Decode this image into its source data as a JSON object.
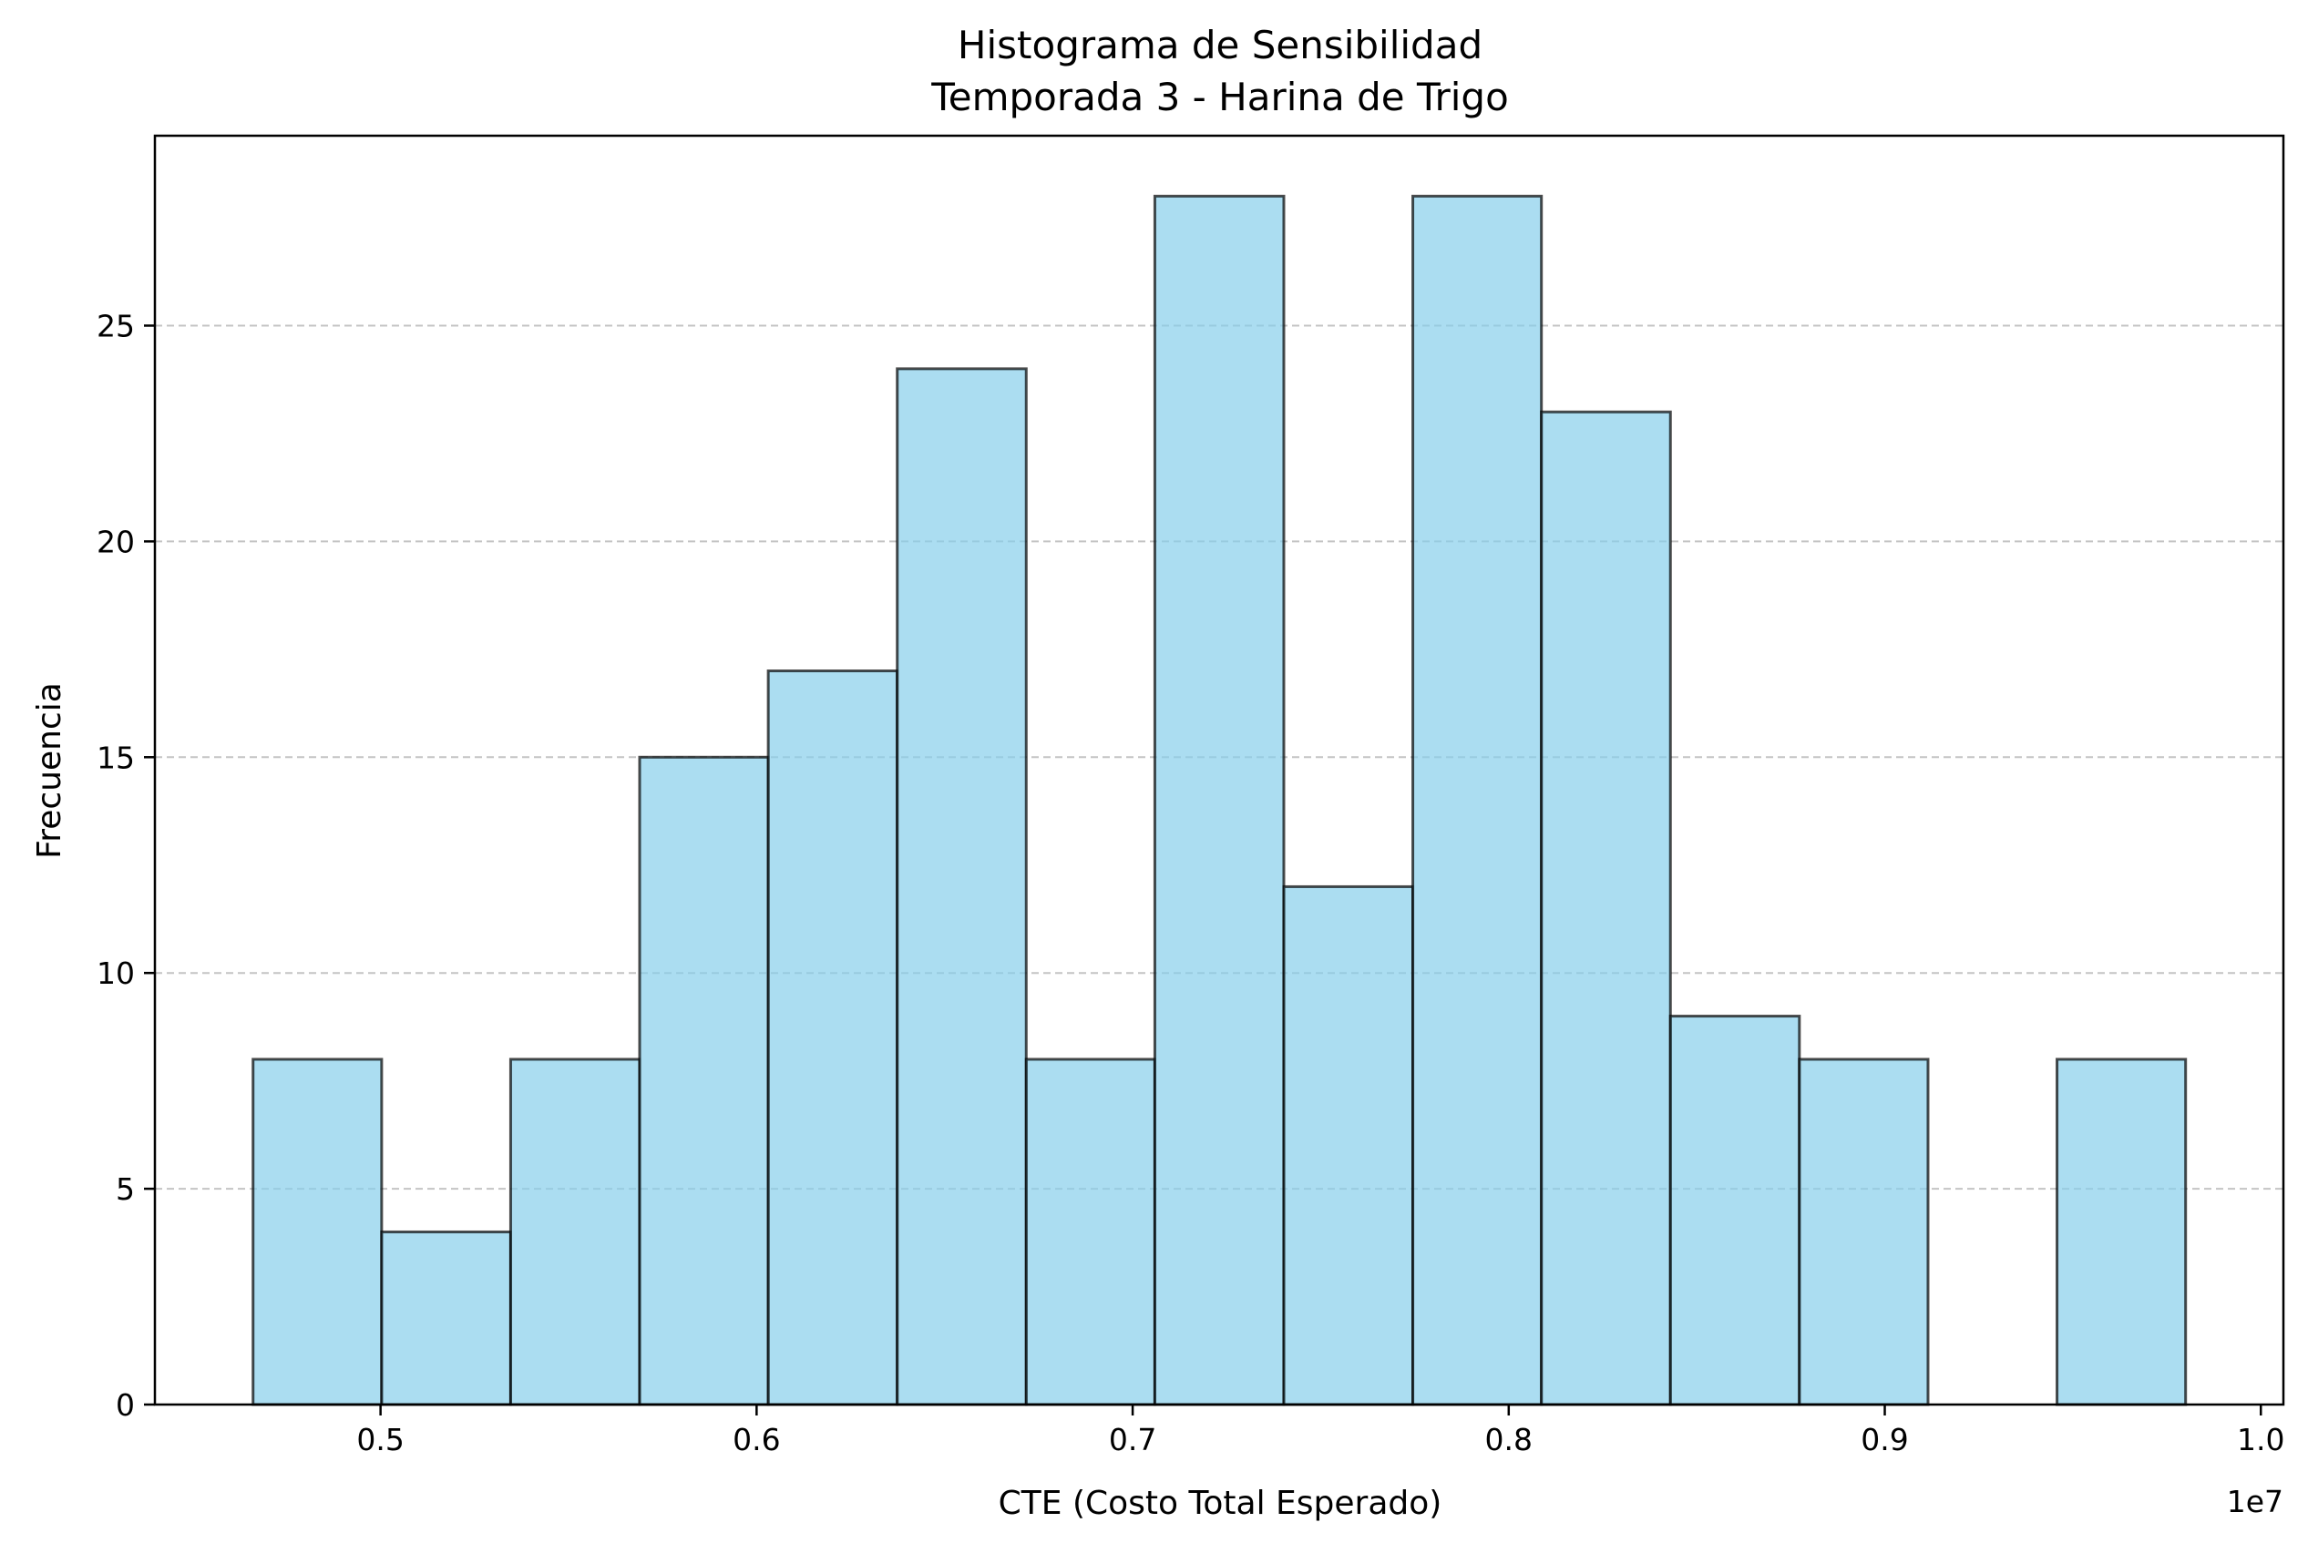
{
  "chart_data": {
    "type": "bar",
    "title_line1": "Histograma de Sensibilidad",
    "title_line2": "Temporada 3 - Harina de Trigo",
    "xlabel": "CTE (Costo Total Esperado)",
    "ylabel": "Frecuencia",
    "x_offset_label": "1e7",
    "x_ticks": [
      "0.5",
      "0.6",
      "0.7",
      "0.8",
      "0.9",
      "1.0"
    ],
    "x_tick_values": [
      0.5,
      0.6,
      0.7,
      0.8,
      0.9,
      1.0
    ],
    "y_ticks": [
      "0",
      "5",
      "10",
      "15",
      "20",
      "25"
    ],
    "y_tick_values": [
      0,
      5,
      10,
      15,
      20,
      25
    ],
    "xlim": [
      0.44,
      1.006
    ],
    "ylim": [
      0,
      29.4
    ],
    "bin_edges": [
      0.4661,
      0.5003,
      0.5346,
      0.5689,
      0.6031,
      0.6374,
      0.6717,
      0.7059,
      0.7402,
      0.7745,
      0.8087,
      0.843,
      0.8773,
      0.9115,
      0.9458,
      0.98
    ],
    "values": [
      8,
      4,
      8,
      15,
      17,
      24,
      8,
      28,
      12,
      28,
      23,
      9,
      8,
      0,
      8
    ],
    "grid": "y-dashed",
    "colors": {
      "bar_fill": "#87ceeb",
      "bar_edge": "#000000",
      "grid": "#c4c4c4"
    }
  }
}
